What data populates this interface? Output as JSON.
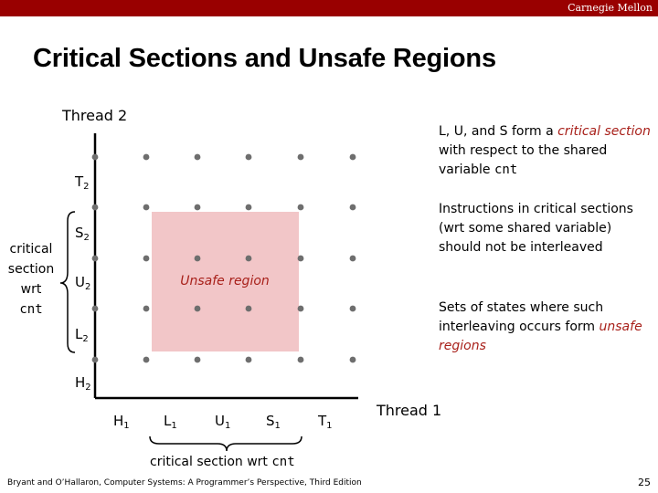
{
  "header": {
    "brand": "Carnegie Mellon"
  },
  "slide": {
    "title": "Critical Sections and Unsafe Regions"
  },
  "diagram": {
    "y_axis_label": "Thread 2",
    "x_axis_label": "Thread 1",
    "y_labels": [
      {
        "base": "H",
        "sub": "2"
      },
      {
        "base": "L",
        "sub": "2"
      },
      {
        "base": "U",
        "sub": "2"
      },
      {
        "base": "S",
        "sub": "2"
      },
      {
        "base": "T",
        "sub": "2"
      }
    ],
    "x_labels": [
      {
        "base": "H",
        "sub": "1"
      },
      {
        "base": "L",
        "sub": "1"
      },
      {
        "base": "U",
        "sub": "1"
      },
      {
        "base": "S",
        "sub": "1"
      },
      {
        "base": "T",
        "sub": "1"
      }
    ],
    "unsafe_region_label": "Unsafe region",
    "y_critical_label": {
      "line1": "critical",
      "line2": "section",
      "line3": "wrt",
      "line4": "cnt"
    },
    "x_critical_label": {
      "text": "critical section wrt ",
      "code": "cnt"
    },
    "colors": {
      "unsafe_fill": "#f2c6c8",
      "accent": "#a8201a",
      "header": "#990000"
    }
  },
  "notes": {
    "note1": {
      "p1": "L, U, and S form a ",
      "crit": "critical section",
      "p2": " with respect to the shared variable ",
      "code": "cnt"
    },
    "note2": "Instructions in critical sections (wrt some shared variable) should not be interleaved",
    "note3": {
      "p1": "Sets of states where such interleaving occurs form ",
      "crit": "unsafe regions"
    }
  },
  "footer": {
    "citation": "Bryant and O’Hallaron, Computer Systems: A Programmer’s Perspective, Third Edition",
    "page_number": "25"
  }
}
